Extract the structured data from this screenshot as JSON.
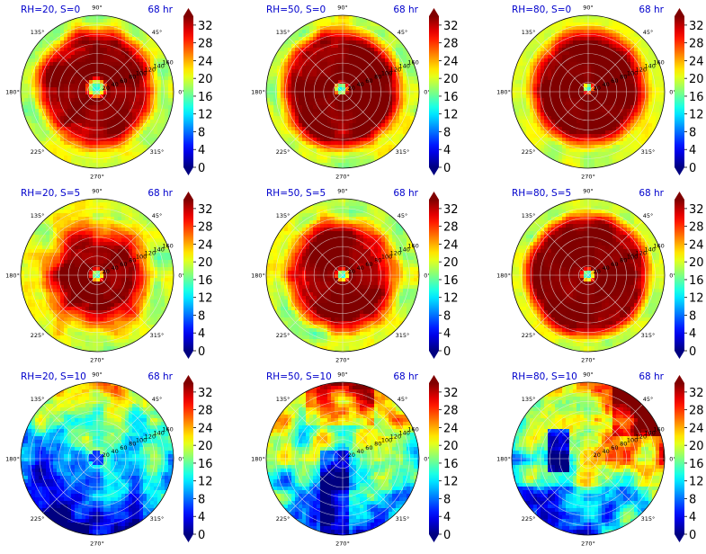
{
  "chart_data": [
    {
      "type": "heatmap",
      "panel_title": "RH=20, S=0",
      "time_label": "68 hr",
      "pattern": "ring",
      "core_radius": 0.08,
      "ring_inner": 0.15,
      "ring_outer": 0.62,
      "noise": 0.35,
      "offset": [
        -0.01,
        0.05
      ]
    },
    {
      "type": "heatmap",
      "panel_title": "RH=50, S=0",
      "time_label": "68 hr",
      "pattern": "ring",
      "core_radius": 0.06,
      "ring_inner": 0.1,
      "ring_outer": 0.66,
      "noise": 0.35,
      "offset": [
        -0.02,
        0.04
      ]
    },
    {
      "type": "heatmap",
      "panel_title": "RH=80, S=0",
      "time_label": "68 hr",
      "pattern": "ring",
      "core_radius": 0.04,
      "ring_inner": 0.08,
      "ring_outer": 0.6,
      "noise": 0.25,
      "offset": [
        0.0,
        0.05
      ]
    },
    {
      "type": "heatmap",
      "panel_title": "RH=20, S=5",
      "time_label": "68 hr",
      "pattern": "ring",
      "core_radius": 0.05,
      "ring_inner": 0.1,
      "ring_outer": 0.45,
      "noise": 0.45,
      "offset": [
        0.0,
        0.0
      ]
    },
    {
      "type": "heatmap",
      "panel_title": "RH=50, S=5",
      "time_label": "68 hr",
      "pattern": "ring",
      "core_radius": 0.05,
      "ring_inner": 0.1,
      "ring_outer": 0.55,
      "noise": 0.45,
      "offset": [
        0.0,
        0.0
      ]
    },
    {
      "type": "heatmap",
      "panel_title": "RH=80, S=5",
      "time_label": "68 hr",
      "pattern": "ring",
      "core_radius": 0.05,
      "ring_inner": 0.1,
      "ring_outer": 0.7,
      "noise": 0.3,
      "offset": [
        0.0,
        0.0
      ]
    },
    {
      "type": "heatmap",
      "panel_title": "RH=20, S=10",
      "time_label": "68 hr",
      "pattern": "sheared_low",
      "noise": 0.6,
      "offset": [
        0.0,
        0.0
      ]
    },
    {
      "type": "heatmap",
      "panel_title": "RH=50, S=10",
      "time_label": "68 hr",
      "pattern": "sheared_mid",
      "noise": 0.6,
      "offset": [
        0.0,
        0.0
      ]
    },
    {
      "type": "heatmap",
      "panel_title": "RH=80, S=10",
      "time_label": "68 hr",
      "pattern": "sheared_high",
      "noise": 0.6,
      "offset": [
        0.0,
        0.0
      ]
    }
  ],
  "polar_axis": {
    "angle_labels": [
      "0°",
      "45°",
      "90°",
      "135°",
      "180°",
      "225°",
      "270°",
      "315°"
    ],
    "radial_ticks": [
      "20",
      "40",
      "60",
      "80",
      "100",
      "120",
      "140",
      "160"
    ],
    "radial_label_angle_deg": 22.5,
    "radial_rings": 8
  },
  "colorbar": {
    "vmin": 0,
    "vmax": 34,
    "ticks": [
      "0",
      "4",
      "8",
      "12",
      "16",
      "20",
      "24",
      "28",
      "32"
    ],
    "colormap": "jet",
    "extend": "both"
  },
  "colors": {
    "title_color": "#0000cc",
    "grid_color": "#e8e8e8",
    "axis_edge": "#000000"
  }
}
